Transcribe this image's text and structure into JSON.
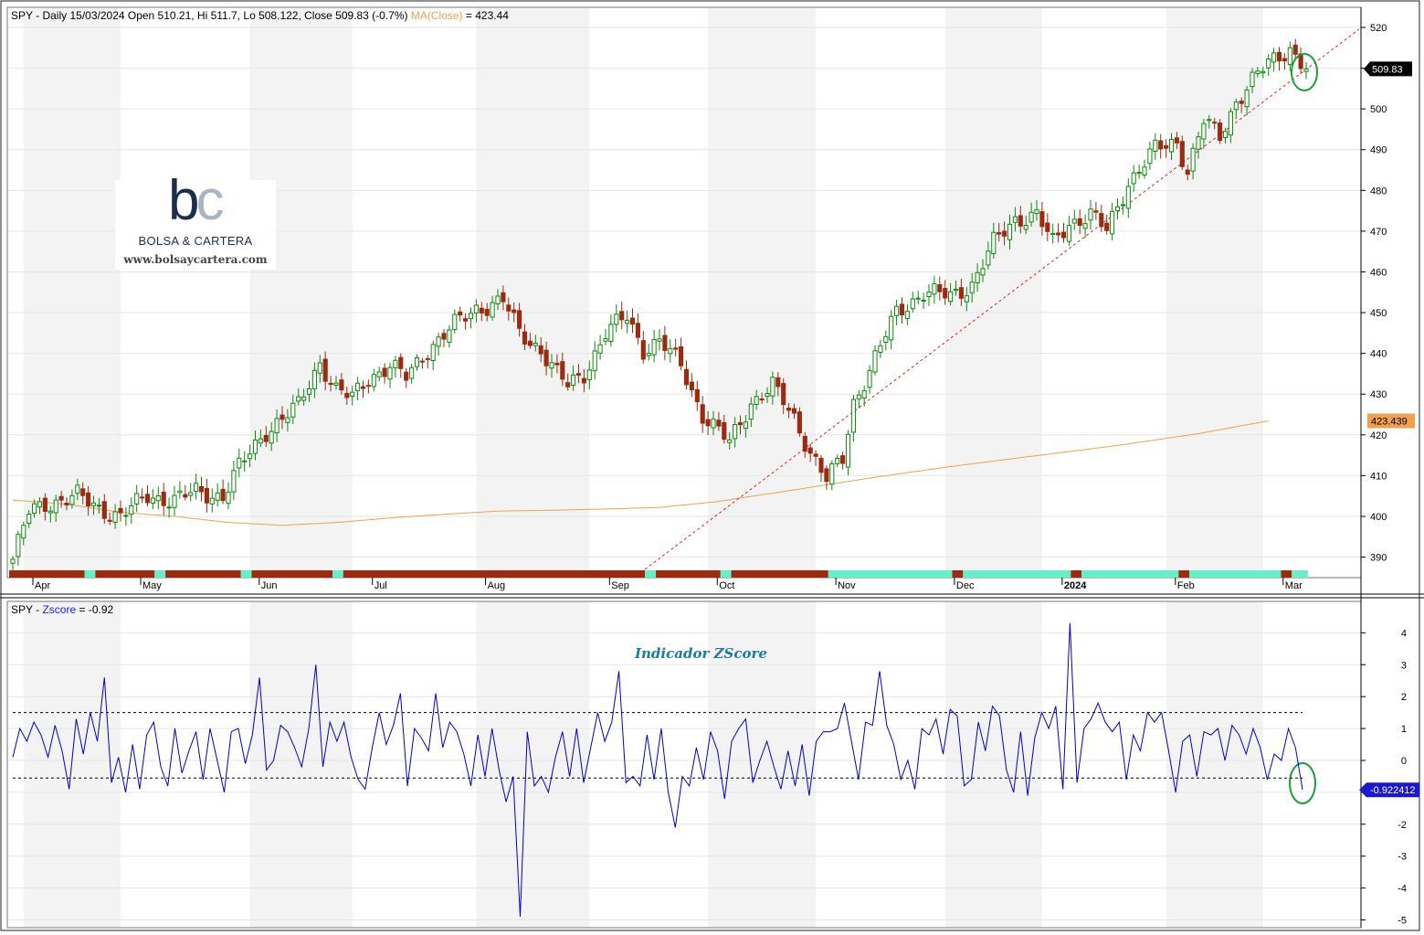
{
  "header": {
    "symbol": "SPY",
    "price_line": "- Daily 15/03/2024 Open 510.21, Hi 511.7, Lo 508.122, Close 509.83 (-0.7%)",
    "ma_label": "MA(Close)",
    "ma_value": "= 423.44"
  },
  "indicator_header": {
    "symbol": "SPY",
    "name": "Zscore",
    "value": "= -0.92"
  },
  "indicator_title": "Indicador ZScore",
  "logo": {
    "name": "BOLSA & CARTERA",
    "url": "www.bolsaycartera.com"
  },
  "colors": {
    "bull": "#0a8a0a",
    "bear": "#9b2a10",
    "ma": "#f0a050",
    "zscore": "#0000cc",
    "trendline": "#e02020",
    "highlight": "#1aa03a",
    "teal_band": "#66f0c8",
    "red_band": "#9b2a10"
  },
  "chart_data": [
    {
      "type": "candlestick",
      "title": "SPY - Daily",
      "x_labels": [
        "Apr",
        "May",
        "Jun",
        "Jul",
        "Aug",
        "Sep",
        "Oct",
        "Nov",
        "Dec",
        "2024",
        "Feb",
        "Mar"
      ],
      "y_ticks": [
        390,
        400,
        410,
        420,
        430,
        440,
        450,
        460,
        470,
        480,
        490,
        500,
        510,
        520
      ],
      "ylim": [
        385,
        522
      ],
      "last_close_label": "509.83",
      "ma_label_value": "423.439",
      "close_path_anchors": [
        [
          0,
          389.5
        ],
        [
          3,
          401
        ],
        [
          6,
          403
        ],
        [
          12,
          405
        ],
        [
          16,
          402
        ],
        [
          20,
          400
        ],
        [
          25,
          405
        ],
        [
          30,
          404
        ],
        [
          34,
          406
        ],
        [
          39,
          405
        ],
        [
          42,
          412
        ],
        [
          47,
          421
        ],
        [
          49,
          423
        ],
        [
          53,
          427
        ],
        [
          57,
          438
        ],
        [
          60,
          431
        ],
        [
          63,
          429
        ],
        [
          66,
          434
        ],
        [
          70,
          437
        ],
        [
          73,
          434
        ],
        [
          77,
          441
        ],
        [
          82,
          447
        ],
        [
          86,
          451
        ],
        [
          91,
          453
        ],
        [
          94,
          445
        ],
        [
          98,
          441
        ],
        [
          101,
          435
        ],
        [
          103,
          432
        ],
        [
          106,
          435
        ],
        [
          110,
          445
        ],
        [
          114,
          449
        ],
        [
          117,
          441
        ],
        [
          120,
          443
        ],
        [
          124,
          437
        ],
        [
          128,
          425
        ],
        [
          133,
          418
        ],
        [
          137,
          428
        ],
        [
          141,
          432
        ],
        [
          145,
          424
        ],
        [
          148,
          416
        ],
        [
          151,
          409
        ],
        [
          154,
          414
        ],
        [
          156,
          428
        ],
        [
          159,
          436
        ],
        [
          164,
          450
        ],
        [
          169,
          455
        ],
        [
          174,
          454
        ],
        [
          178,
          457
        ],
        [
          182,
          467
        ],
        [
          186,
          473
        ],
        [
          190,
          474
        ],
        [
          193,
          467
        ],
        [
          196,
          472
        ],
        [
          200,
          474
        ],
        [
          203,
          470
        ],
        [
          207,
          482
        ],
        [
          212,
          490
        ],
        [
          216,
          492
        ],
        [
          218,
          485
        ],
        [
          221,
          497
        ],
        [
          224,
          493
        ],
        [
          227,
          502
        ],
        [
          230,
          507
        ],
        [
          233,
          511
        ],
        [
          237,
          515
        ],
        [
          240,
          509.8
        ]
      ],
      "ma_path_anchors": [
        [
          0,
          404
        ],
        [
          10,
          403
        ],
        [
          20,
          401
        ],
        [
          30,
          400
        ],
        [
          40,
          398.5
        ],
        [
          50,
          397.8
        ],
        [
          60,
          398.5
        ],
        [
          70,
          399.6
        ],
        [
          80,
          400.5
        ],
        [
          90,
          401.3
        ],
        [
          100,
          401.5
        ],
        [
          110,
          401.8
        ],
        [
          120,
          402.2
        ],
        [
          130,
          403.5
        ],
        [
          145,
          406.5
        ],
        [
          160,
          409.6
        ],
        [
          175,
          412.4
        ],
        [
          190,
          414.9
        ],
        [
          205,
          417.4
        ],
        [
          220,
          420.3
        ],
        [
          233,
          423.44
        ]
      ],
      "regime_bar_pattern": [
        "red",
        "teal",
        "red",
        "teal",
        "red",
        "teal",
        "red",
        "teal",
        "red",
        "teal",
        "red",
        "teal",
        "red"
      ]
    },
    {
      "type": "line",
      "series": [
        {
          "name": "Zscore"
        }
      ],
      "y_ticks": [
        -5,
        -4,
        -3,
        -2,
        -1,
        0,
        1,
        2,
        3,
        4
      ],
      "ylim": [
        -5,
        4.4
      ],
      "reference_lines": [
        1.5,
        -0.55
      ],
      "last_value_label": "-0.922412",
      "values": [
        0.1,
        1.0,
        0.6,
        1.2,
        0.8,
        0.1,
        1.1,
        0.3,
        -0.9,
        1.3,
        0.2,
        1.5,
        0.6,
        2.6,
        -0.7,
        0.1,
        -1.0,
        0.5,
        -0.9,
        0.8,
        1.2,
        -0.2,
        -0.8,
        1.0,
        -0.4,
        0.3,
        0.9,
        -0.6,
        1.0,
        0.0,
        -1.0,
        0.9,
        1.0,
        -0.1,
        0.8,
        2.6,
        -0.3,
        0.0,
        1.1,
        0.9,
        0.4,
        -0.2,
        1.0,
        3.0,
        -0.2,
        1.2,
        0.6,
        1.2,
        0.1,
        -0.6,
        -0.9,
        0.4,
        1.5,
        0.5,
        1.1,
        2.1,
        -0.8,
        1.0,
        0.7,
        0.3,
        2.1,
        0.4,
        1.2,
        0.9,
        0.2,
        -0.8,
        0.8,
        -0.5,
        1.0,
        -0.3,
        -1.3,
        -0.5,
        -4.9,
        0.9,
        -0.8,
        -0.5,
        -1.0,
        0.1,
        0.9,
        -0.5,
        1.0,
        -0.7,
        0.4,
        1.5,
        0.6,
        1.2,
        2.8,
        -0.7,
        -0.5,
        -0.8,
        0.8,
        -0.6,
        1.0,
        -1.0,
        -2.1,
        -0.5,
        -0.8,
        0.4,
        -0.6,
        0.9,
        0.3,
        -1.2,
        0.6,
        1.0,
        1.3,
        -0.7,
        0.0,
        0.6,
        -0.2,
        -0.9,
        0.3,
        -0.8,
        0.5,
        -1.1,
        0.6,
        0.9,
        0.9,
        1.0,
        1.8,
        0.6,
        -0.6,
        1.2,
        1.1,
        2.8,
        1.1,
        0.5,
        -0.6,
        0.0,
        -0.9,
        1.0,
        0.8,
        1.3,
        0.2,
        1.6,
        1.4,
        -0.8,
        -0.6,
        1.2,
        0.3,
        1.7,
        1.4,
        -0.3,
        -1.0,
        0.9,
        -1.1,
        0.7,
        1.5,
        1.0,
        1.7,
        -0.9,
        4.3,
        -0.7,
        1.0,
        1.3,
        1.8,
        1.2,
        0.9,
        1.2,
        -0.6,
        0.8,
        0.3,
        1.5,
        1.2,
        1.5,
        0.3,
        -1.0,
        0.6,
        0.8,
        -0.5,
        0.9,
        0.8,
        1.0,
        0.0,
        1.1,
        0.8,
        0.2,
        1.0,
        0.4,
        -0.6,
        0.2,
        0.0,
        1.0,
        0.4,
        -0.92
      ]
    }
  ]
}
